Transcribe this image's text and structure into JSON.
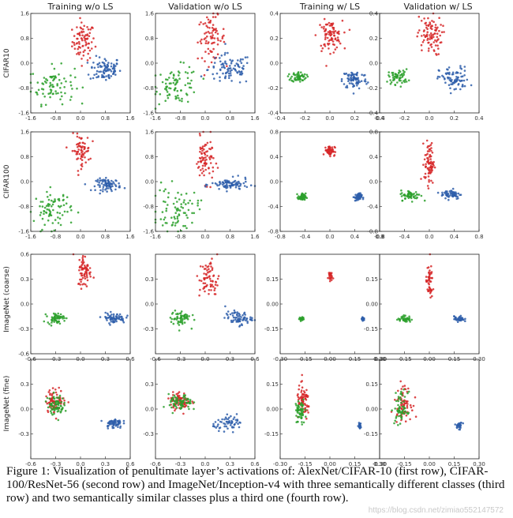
{
  "figure": {
    "column_titles": [
      "Training w/o LS",
      "Validation w/o LS",
      "Training w/ LS",
      "Validation w/ LS"
    ],
    "row_labels": [
      "CIFAR10",
      "CIFAR100",
      "ImageNet (coarse)",
      "ImageNet (fine)"
    ],
    "colors": {
      "class_a": "#d62728",
      "class_b": "#2e5eaa",
      "class_c": "#2ca02c",
      "frame": "#222222"
    }
  },
  "caption": "Figure 1: Visualization of penultimate layer’s activations of: AlexNet/CIFAR-10 (first row), CIFAR-100/ResNet-56 (second row) and ImageNet/Inception-v4 with three semantically different classes (third row) and two semantically similar classes plus a third one (fourth row).",
  "watermark": "https://blog.csdn.net/zimiao552147572",
  "chart_data": [
    {
      "type": "scatter",
      "row": "CIFAR10",
      "panel": "Training w/o LS",
      "xlim": [
        -1.6,
        1.6
      ],
      "ylim": [
        -1.6,
        1.6
      ],
      "xticks": [
        "-1.6",
        "-0.8",
        "0.0",
        "0.8",
        "1.6"
      ],
      "yticks": [
        "1.6",
        "0.8",
        "0.0",
        "-0.8",
        "-1.6"
      ],
      "clusters": [
        {
          "x": 0.1,
          "y": 0.7,
          "sx": 0.18,
          "sy": 0.3,
          "n": 80,
          "c": "class_a"
        },
        {
          "x": 0.8,
          "y": -0.2,
          "sx": 0.25,
          "sy": 0.2,
          "n": 90,
          "c": "class_b"
        },
        {
          "x": -0.9,
          "y": -0.7,
          "sx": 0.35,
          "sy": 0.3,
          "n": 80,
          "c": "class_c"
        }
      ]
    },
    {
      "type": "scatter",
      "row": "CIFAR10",
      "panel": "Validation w/o LS",
      "xlim": [
        -1.6,
        1.6
      ],
      "ylim": [
        -1.6,
        1.6
      ],
      "xticks": [
        "-1.6",
        "-0.8",
        "0.0",
        "0.8",
        "1.6"
      ],
      "yticks": [
        "1.6",
        "0.8",
        "0.0",
        "-0.8",
        "-1.6"
      ],
      "clusters": [
        {
          "x": 0.2,
          "y": 0.8,
          "sx": 0.22,
          "sy": 0.35,
          "n": 80,
          "c": "class_a"
        },
        {
          "x": 0.8,
          "y": -0.2,
          "sx": 0.35,
          "sy": 0.25,
          "n": 90,
          "c": "class_b"
        },
        {
          "x": -0.9,
          "y": -0.7,
          "sx": 0.35,
          "sy": 0.3,
          "n": 80,
          "c": "class_c"
        }
      ]
    },
    {
      "type": "scatter",
      "row": "CIFAR10",
      "panel": "Training w/ LS",
      "xlim": [
        -0.4,
        0.4
      ],
      "ylim": [
        -0.4,
        0.4
      ],
      "xticks": [
        "-0.4",
        "-0.2",
        "0.0",
        "0.2",
        "0.4"
      ],
      "yticks": [
        "0.4",
        "0.2",
        "0.0",
        "-0.2",
        "-0.4"
      ],
      "clusters": [
        {
          "x": 0.0,
          "y": 0.22,
          "sx": 0.05,
          "sy": 0.06,
          "n": 90,
          "c": "class_a"
        },
        {
          "x": 0.2,
          "y": -0.13,
          "sx": 0.05,
          "sy": 0.04,
          "n": 80,
          "c": "class_b"
        },
        {
          "x": -0.25,
          "y": -0.11,
          "sx": 0.03,
          "sy": 0.02,
          "n": 60,
          "c": "class_c"
        }
      ]
    },
    {
      "type": "scatter",
      "row": "CIFAR10",
      "panel": "Validation w/ LS",
      "xlim": [
        -0.4,
        0.4
      ],
      "ylim": [
        -0.4,
        0.4
      ],
      "xticks": [
        "-0.4",
        "-0.2",
        "0.0",
        "0.2",
        "0.4"
      ],
      "yticks": [
        "0.4",
        "0.2",
        "0.0",
        "-0.2",
        "-0.4"
      ],
      "clusters": [
        {
          "x": 0.0,
          "y": 0.22,
          "sx": 0.05,
          "sy": 0.08,
          "n": 90,
          "c": "class_a"
        },
        {
          "x": 0.2,
          "y": -0.13,
          "sx": 0.06,
          "sy": 0.05,
          "n": 80,
          "c": "class_b"
        },
        {
          "x": -0.25,
          "y": -0.11,
          "sx": 0.04,
          "sy": 0.03,
          "n": 60,
          "c": "class_c"
        }
      ]
    },
    {
      "type": "scatter",
      "row": "CIFAR100",
      "panel": "Training w/o LS",
      "xlim": [
        -1.6,
        1.6
      ],
      "ylim": [
        -1.6,
        1.6
      ],
      "xticks": [
        "-1.6",
        "-0.8",
        "0.0",
        "0.8",
        "1.6"
      ],
      "yticks": [
        "1.6",
        "0.8",
        "0.0",
        "-0.8",
        "-1.6"
      ],
      "clusters": [
        {
          "x": 0.0,
          "y": 1.0,
          "sx": 0.15,
          "sy": 0.25,
          "n": 70,
          "c": "class_a"
        },
        {
          "x": 0.9,
          "y": -0.1,
          "sx": 0.2,
          "sy": 0.1,
          "n": 80,
          "c": "class_b"
        },
        {
          "x": -0.9,
          "y": -0.9,
          "sx": 0.3,
          "sy": 0.3,
          "n": 80,
          "c": "class_c"
        }
      ]
    },
    {
      "type": "scatter",
      "row": "CIFAR100",
      "panel": "Validation w/o LS",
      "xlim": [
        -1.6,
        1.6
      ],
      "ylim": [
        -1.6,
        1.6
      ],
      "xticks": [
        "-1.6",
        "-0.8",
        "0.0",
        "0.8",
        "1.6"
      ],
      "yticks": [
        "1.6",
        "0.8",
        "0.0",
        "-0.8",
        "-1.6"
      ],
      "clusters": [
        {
          "x": 0.0,
          "y": 0.7,
          "sx": 0.15,
          "sy": 0.35,
          "n": 80,
          "c": "class_a"
        },
        {
          "x": 0.8,
          "y": -0.1,
          "sx": 0.3,
          "sy": 0.1,
          "n": 80,
          "c": "class_b"
        },
        {
          "x": -0.9,
          "y": -0.9,
          "sx": 0.35,
          "sy": 0.35,
          "n": 80,
          "c": "class_c"
        }
      ]
    },
    {
      "type": "scatter",
      "row": "CIFAR100",
      "panel": "Training w/ LS",
      "xlim": [
        -0.8,
        0.8
      ],
      "ylim": [
        -0.8,
        0.8
      ],
      "xticks": [
        "-0.8",
        "-0.4",
        "0.0",
        "0.4",
        "0.8"
      ],
      "yticks": [
        "0.8",
        "0.4",
        "0.0",
        "-0.4",
        "-0.8"
      ],
      "clusters": [
        {
          "x": 0.0,
          "y": 0.5,
          "sx": 0.04,
          "sy": 0.04,
          "n": 60,
          "c": "class_a"
        },
        {
          "x": 0.45,
          "y": -0.25,
          "sx": 0.03,
          "sy": 0.03,
          "n": 50,
          "c": "class_b"
        },
        {
          "x": -0.45,
          "y": -0.25,
          "sx": 0.03,
          "sy": 0.03,
          "n": 50,
          "c": "class_c"
        }
      ]
    },
    {
      "type": "scatter",
      "row": "CIFAR100",
      "panel": "Validation w/ LS",
      "xlim": [
        -0.8,
        0.8
      ],
      "ylim": [
        -0.8,
        0.8
      ],
      "xticks": [
        "-0.8",
        "-0.4",
        "0.0",
        "0.4",
        "0.8"
      ],
      "yticks": [
        "0.8",
        "0.4",
        "0.0",
        "-0.4",
        "-0.8"
      ],
      "clusters": [
        {
          "x": 0.0,
          "y": 0.3,
          "sx": 0.04,
          "sy": 0.17,
          "n": 80,
          "c": "class_a"
        },
        {
          "x": 0.35,
          "y": -0.2,
          "sx": 0.08,
          "sy": 0.04,
          "n": 60,
          "c": "class_b"
        },
        {
          "x": -0.3,
          "y": -0.22,
          "sx": 0.08,
          "sy": 0.04,
          "n": 60,
          "c": "class_c"
        }
      ]
    },
    {
      "type": "scatter",
      "row": "ImageNet (coarse)",
      "panel": "Training w/o LS",
      "xlim": [
        -0.6,
        0.6
      ],
      "ylim": [
        -0.6,
        0.6
      ],
      "xticks": [
        "-0.6",
        "-0.3",
        "0.0",
        "0.3",
        "0.6"
      ],
      "yticks": [
        "0.6",
        "0.3",
        "0.0",
        "-0.3",
        "-0.6"
      ],
      "clusters": [
        {
          "x": 0.05,
          "y": 0.4,
          "sx": 0.04,
          "sy": 0.1,
          "n": 70,
          "c": "class_a"
        },
        {
          "x": 0.4,
          "y": -0.17,
          "sx": 0.07,
          "sy": 0.03,
          "n": 70,
          "c": "class_b"
        },
        {
          "x": -0.3,
          "y": -0.17,
          "sx": 0.05,
          "sy": 0.03,
          "n": 60,
          "c": "class_c"
        }
      ]
    },
    {
      "type": "scatter",
      "row": "ImageNet (coarse)",
      "panel": "Validation w/o LS",
      "xlim": [
        -0.6,
        0.6
      ],
      "ylim": [
        -0.6,
        0.6
      ],
      "xticks": [
        "-0.6",
        "-0.3",
        "0.0",
        "0.3",
        "0.6"
      ],
      "yticks": [
        "0.3",
        "0.0",
        "-0.3"
      ],
      "clusters": [
        {
          "x": 0.05,
          "y": 0.3,
          "sx": 0.06,
          "sy": 0.12,
          "n": 70,
          "c": "class_a"
        },
        {
          "x": 0.4,
          "y": -0.17,
          "sx": 0.08,
          "sy": 0.04,
          "n": 70,
          "c": "class_b"
        },
        {
          "x": -0.3,
          "y": -0.17,
          "sx": 0.06,
          "sy": 0.05,
          "n": 60,
          "c": "class_c"
        }
      ]
    },
    {
      "type": "scatter",
      "row": "ImageNet (coarse)",
      "panel": "Training w/ LS",
      "xlim": [
        -0.3,
        0.3
      ],
      "ylim": [
        -0.3,
        0.3
      ],
      "xticks": [
        "-0.30",
        "-0.15",
        "0.00",
        "0.15",
        "0.30"
      ],
      "yticks": [
        "0.15",
        "0.00",
        "-0.15"
      ],
      "clusters": [
        {
          "x": 0.0,
          "y": 0.17,
          "sx": 0.006,
          "sy": 0.015,
          "n": 30,
          "c": "class_a"
        },
        {
          "x": 0.2,
          "y": -0.09,
          "sx": 0.005,
          "sy": 0.005,
          "n": 30,
          "c": "class_b"
        },
        {
          "x": -0.17,
          "y": -0.09,
          "sx": 0.007,
          "sy": 0.006,
          "n": 30,
          "c": "class_c"
        }
      ]
    },
    {
      "type": "scatter",
      "row": "ImageNet (coarse)",
      "panel": "Validation w/ LS",
      "xlim": [
        -0.3,
        0.3
      ],
      "ylim": [
        -0.3,
        0.3
      ],
      "xticks": [
        "-0.30",
        "-0.15",
        "0.00",
        "0.15",
        "0.30"
      ],
      "yticks": [
        "0.15",
        "0.00",
        "-0.15"
      ],
      "clusters": [
        {
          "x": 0.0,
          "y": 0.13,
          "sx": 0.01,
          "sy": 0.05,
          "n": 50,
          "c": "class_a"
        },
        {
          "x": 0.18,
          "y": -0.09,
          "sx": 0.015,
          "sy": 0.008,
          "n": 40,
          "c": "class_b"
        },
        {
          "x": -0.15,
          "y": -0.09,
          "sx": 0.02,
          "sy": 0.01,
          "n": 40,
          "c": "class_c"
        }
      ]
    },
    {
      "type": "scatter",
      "row": "ImageNet (fine)",
      "panel": "Training w/o LS",
      "xlim": [
        -0.6,
        0.6
      ],
      "ylim": [
        -0.6,
        0.6
      ],
      "xticks": [
        "-0.6",
        "-0.3",
        "0.0",
        "0.3",
        "0.6"
      ],
      "yticks": [
        "0.3",
        "0.0",
        "-0.3"
      ],
      "clusters": [
        {
          "x": -0.3,
          "y": 0.1,
          "sx": 0.06,
          "sy": 0.07,
          "n": 80,
          "c": "class_a"
        },
        {
          "x": -0.3,
          "y": 0.05,
          "sx": 0.05,
          "sy": 0.06,
          "n": 70,
          "c": "class_c"
        },
        {
          "x": 0.4,
          "y": -0.17,
          "sx": 0.05,
          "sy": 0.03,
          "n": 60,
          "c": "class_b"
        }
      ]
    },
    {
      "type": "scatter",
      "row": "ImageNet (fine)",
      "panel": "Validation w/o LS",
      "xlim": [
        -0.6,
        0.6
      ],
      "ylim": [
        -0.6,
        0.6
      ],
      "xticks": [
        "-0.6",
        "-0.3",
        "0.0",
        "0.3",
        "0.6"
      ],
      "yticks": [
        "0.3",
        "0.0",
        "-0.3"
      ],
      "clusters": [
        {
          "x": -0.3,
          "y": 0.1,
          "sx": 0.06,
          "sy": 0.05,
          "n": 80,
          "c": "class_a"
        },
        {
          "x": -0.3,
          "y": 0.07,
          "sx": 0.07,
          "sy": 0.05,
          "n": 70,
          "c": "class_c"
        },
        {
          "x": 0.3,
          "y": -0.17,
          "sx": 0.1,
          "sy": 0.04,
          "n": 60,
          "c": "class_b"
        }
      ]
    },
    {
      "type": "scatter",
      "row": "ImageNet (fine)",
      "panel": "Training w/ LS",
      "xlim": [
        -0.3,
        0.3
      ],
      "ylim": [
        -0.3,
        0.3
      ],
      "xticks": [
        "-0.30",
        "-0.15",
        "0.00",
        "0.15",
        "0.30"
      ],
      "yticks": [
        "0.15",
        "0.00",
        "-0.15"
      ],
      "clusters": [
        {
          "x": -0.16,
          "y": 0.04,
          "sx": 0.02,
          "sy": 0.05,
          "n": 70,
          "c": "class_a"
        },
        {
          "x": -0.18,
          "y": -0.02,
          "sx": 0.015,
          "sy": 0.04,
          "n": 60,
          "c": "class_c"
        },
        {
          "x": 0.18,
          "y": -0.1,
          "sx": 0.004,
          "sy": 0.008,
          "n": 25,
          "c": "class_b"
        }
      ]
    },
    {
      "type": "scatter",
      "row": "ImageNet (fine)",
      "panel": "Validation w/ LS",
      "xlim": [
        -0.3,
        0.3
      ],
      "ylim": [
        -0.3,
        0.3
      ],
      "xticks": [
        "-0.30",
        "-0.15",
        "0.00",
        "0.15",
        "0.30"
      ],
      "yticks": [
        "0.15",
        "0.00",
        "-0.15"
      ],
      "clusters": [
        {
          "x": -0.16,
          "y": 0.04,
          "sx": 0.025,
          "sy": 0.05,
          "n": 70,
          "c": "class_a"
        },
        {
          "x": -0.17,
          "y": 0.0,
          "sx": 0.02,
          "sy": 0.05,
          "n": 60,
          "c": "class_c"
        },
        {
          "x": 0.18,
          "y": -0.1,
          "sx": 0.01,
          "sy": 0.01,
          "n": 30,
          "c": "class_b"
        }
      ]
    }
  ]
}
